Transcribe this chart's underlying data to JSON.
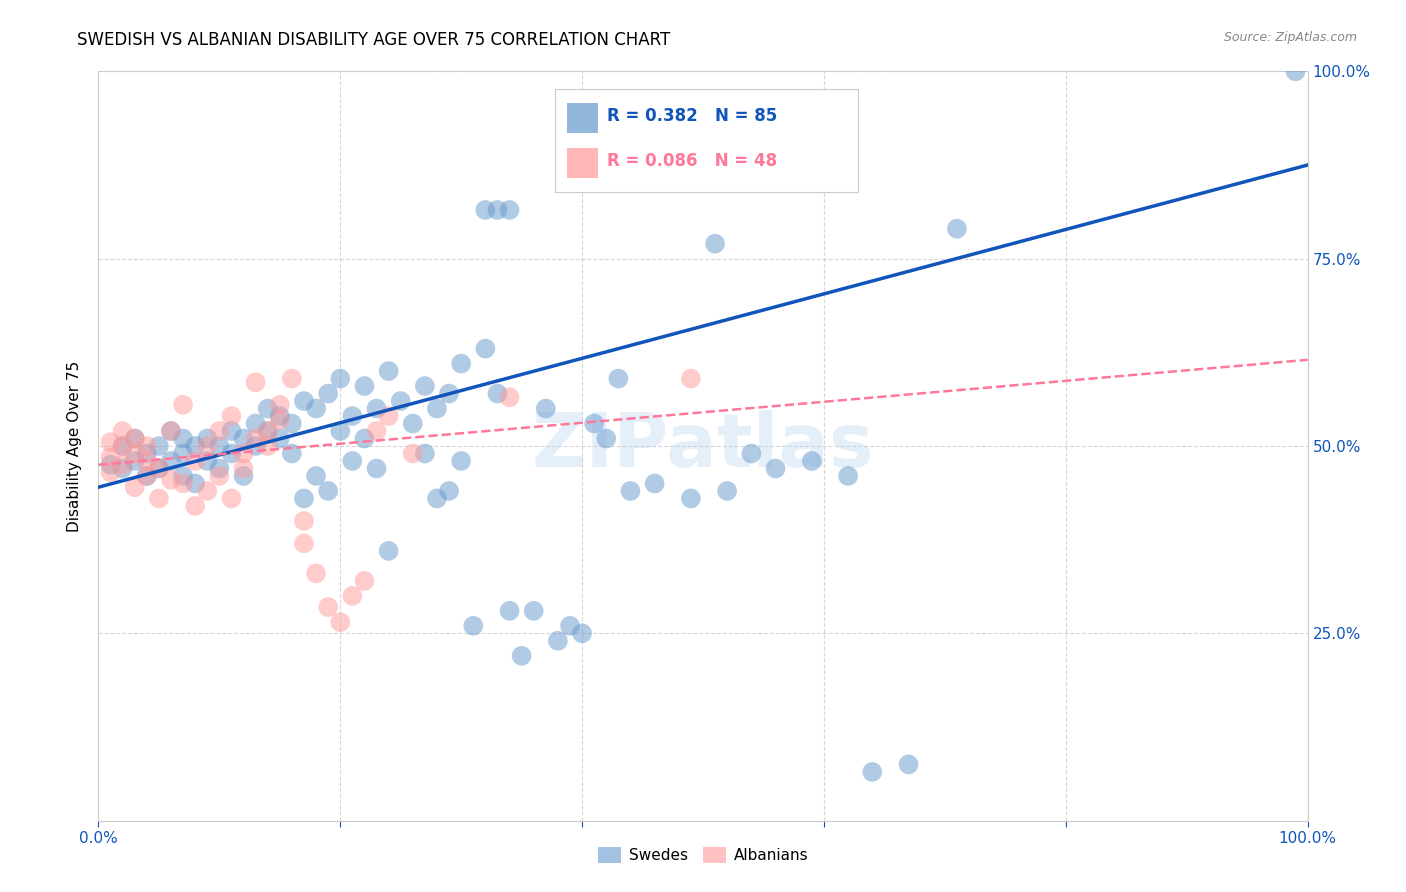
{
  "title": "SWEDISH VS ALBANIAN DISABILITY AGE OVER 75 CORRELATION CHART",
  "source": "Source: ZipAtlas.com",
  "ylabel": "Disability Age Over 75",
  "xlim": [
    0.0,
    1.0
  ],
  "ylim": [
    0.0,
    1.0
  ],
  "legend_label1": "Swedes",
  "legend_label2": "Albanians",
  "blue_color": "#6699CC",
  "pink_color": "#FF9999",
  "blue_line_color": "#1155BB",
  "pink_line_color": "#FF7799",
  "watermark": "ZIPatlas",
  "background_color": "#FFFFFF",
  "blue_trendline": [
    [
      0.0,
      0.445
    ],
    [
      1.0,
      0.875
    ]
  ],
  "pink_trendline": [
    [
      0.0,
      0.475
    ],
    [
      1.0,
      0.615
    ]
  ],
  "swedish_dots": [
    [
      0.01,
      0.475
    ],
    [
      0.02,
      0.47
    ],
    [
      0.02,
      0.5
    ],
    [
      0.03,
      0.48
    ],
    [
      0.03,
      0.51
    ],
    [
      0.04,
      0.49
    ],
    [
      0.04,
      0.46
    ],
    [
      0.05,
      0.5
    ],
    [
      0.05,
      0.47
    ],
    [
      0.06,
      0.52
    ],
    [
      0.06,
      0.48
    ],
    [
      0.07,
      0.49
    ],
    [
      0.07,
      0.46
    ],
    [
      0.07,
      0.51
    ],
    [
      0.08,
      0.5
    ],
    [
      0.08,
      0.45
    ],
    [
      0.09,
      0.51
    ],
    [
      0.09,
      0.48
    ],
    [
      0.1,
      0.5
    ],
    [
      0.1,
      0.47
    ],
    [
      0.11,
      0.52
    ],
    [
      0.11,
      0.49
    ],
    [
      0.12,
      0.51
    ],
    [
      0.12,
      0.46
    ],
    [
      0.13,
      0.53
    ],
    [
      0.13,
      0.5
    ],
    [
      0.14,
      0.55
    ],
    [
      0.14,
      0.52
    ],
    [
      0.15,
      0.54
    ],
    [
      0.15,
      0.51
    ],
    [
      0.16,
      0.53
    ],
    [
      0.16,
      0.49
    ],
    [
      0.17,
      0.56
    ],
    [
      0.17,
      0.43
    ],
    [
      0.18,
      0.55
    ],
    [
      0.18,
      0.46
    ],
    [
      0.19,
      0.57
    ],
    [
      0.19,
      0.44
    ],
    [
      0.2,
      0.59
    ],
    [
      0.2,
      0.52
    ],
    [
      0.21,
      0.54
    ],
    [
      0.21,
      0.48
    ],
    [
      0.22,
      0.58
    ],
    [
      0.22,
      0.51
    ],
    [
      0.23,
      0.55
    ],
    [
      0.23,
      0.47
    ],
    [
      0.24,
      0.6
    ],
    [
      0.24,
      0.36
    ],
    [
      0.25,
      0.56
    ],
    [
      0.26,
      0.53
    ],
    [
      0.27,
      0.58
    ],
    [
      0.27,
      0.49
    ],
    [
      0.28,
      0.55
    ],
    [
      0.28,
      0.43
    ],
    [
      0.29,
      0.57
    ],
    [
      0.29,
      0.44
    ],
    [
      0.3,
      0.61
    ],
    [
      0.3,
      0.48
    ],
    [
      0.31,
      0.26
    ],
    [
      0.32,
      0.63
    ],
    [
      0.33,
      0.57
    ],
    [
      0.34,
      0.28
    ],
    [
      0.35,
      0.22
    ],
    [
      0.36,
      0.28
    ],
    [
      0.37,
      0.55
    ],
    [
      0.38,
      0.24
    ],
    [
      0.39,
      0.26
    ],
    [
      0.4,
      0.25
    ],
    [
      0.41,
      0.53
    ],
    [
      0.42,
      0.51
    ],
    [
      0.43,
      0.59
    ],
    [
      0.44,
      0.44
    ],
    [
      0.46,
      0.45
    ],
    [
      0.49,
      0.43
    ],
    [
      0.32,
      0.815
    ],
    [
      0.33,
      0.815
    ],
    [
      0.34,
      0.815
    ],
    [
      0.51,
      0.77
    ],
    [
      0.52,
      0.44
    ],
    [
      0.54,
      0.49
    ],
    [
      0.56,
      0.47
    ],
    [
      0.59,
      0.48
    ],
    [
      0.62,
      0.46
    ],
    [
      0.64,
      0.065
    ],
    [
      0.67,
      0.075
    ],
    [
      0.71,
      0.79
    ],
    [
      0.99,
      1.0
    ]
  ],
  "albanian_dots": [
    [
      0.01,
      0.485
    ],
    [
      0.01,
      0.505
    ],
    [
      0.01,
      0.465
    ],
    [
      0.02,
      0.5
    ],
    [
      0.02,
      0.475
    ],
    [
      0.02,
      0.52
    ],
    [
      0.03,
      0.49
    ],
    [
      0.03,
      0.445
    ],
    [
      0.03,
      0.51
    ],
    [
      0.04,
      0.48
    ],
    [
      0.04,
      0.46
    ],
    [
      0.04,
      0.5
    ],
    [
      0.05,
      0.43
    ],
    [
      0.05,
      0.47
    ],
    [
      0.06,
      0.52
    ],
    [
      0.06,
      0.455
    ],
    [
      0.07,
      0.555
    ],
    [
      0.07,
      0.45
    ],
    [
      0.08,
      0.48
    ],
    [
      0.08,
      0.42
    ],
    [
      0.09,
      0.5
    ],
    [
      0.09,
      0.44
    ],
    [
      0.1,
      0.52
    ],
    [
      0.1,
      0.46
    ],
    [
      0.11,
      0.54
    ],
    [
      0.11,
      0.43
    ],
    [
      0.12,
      0.49
    ],
    [
      0.12,
      0.47
    ],
    [
      0.13,
      0.585
    ],
    [
      0.13,
      0.51
    ],
    [
      0.14,
      0.52
    ],
    [
      0.14,
      0.5
    ],
    [
      0.15,
      0.555
    ],
    [
      0.15,
      0.535
    ],
    [
      0.16,
      0.59
    ],
    [
      0.17,
      0.4
    ],
    [
      0.17,
      0.37
    ],
    [
      0.18,
      0.33
    ],
    [
      0.19,
      0.285
    ],
    [
      0.2,
      0.265
    ],
    [
      0.21,
      0.3
    ],
    [
      0.22,
      0.32
    ],
    [
      0.23,
      0.52
    ],
    [
      0.24,
      0.54
    ],
    [
      0.26,
      0.49
    ],
    [
      0.34,
      0.565
    ],
    [
      0.49,
      0.59
    ]
  ]
}
